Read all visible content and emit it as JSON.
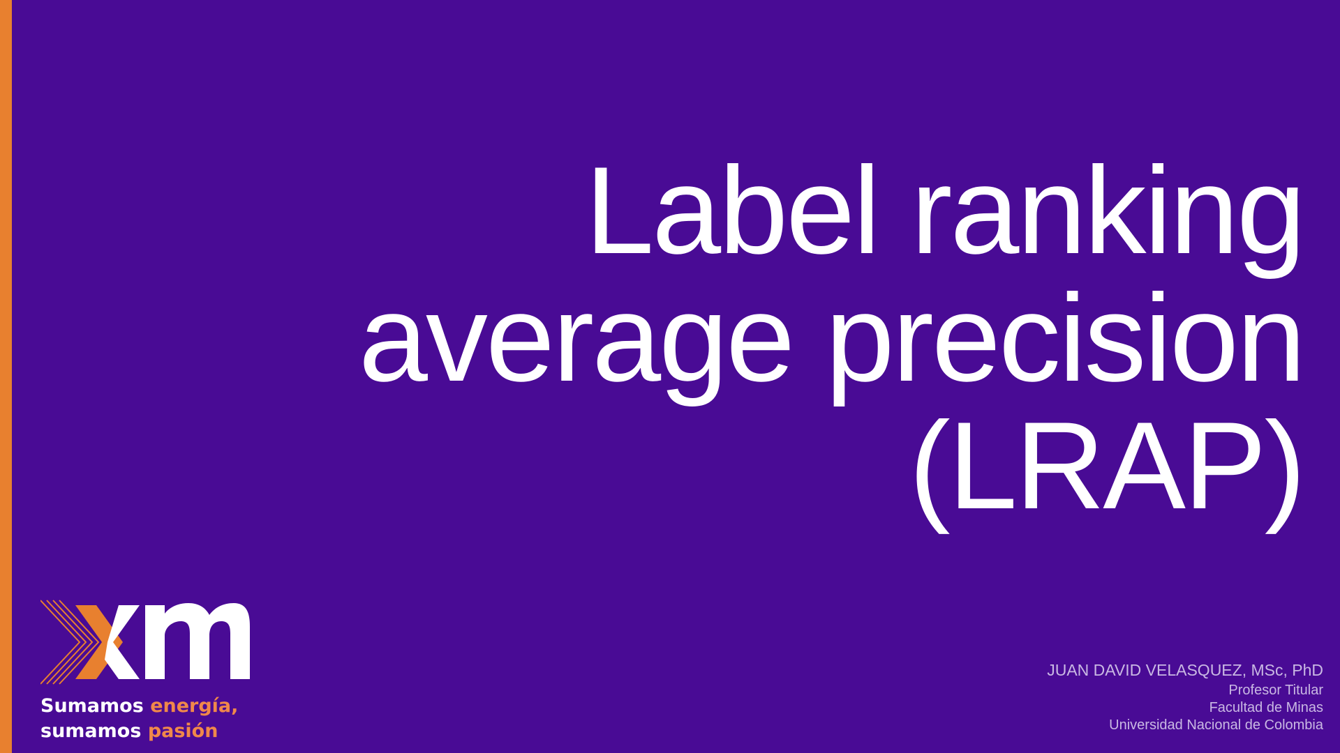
{
  "slide": {
    "title_lines": [
      "Label ranking",
      "average precision",
      "(LRAP)"
    ]
  },
  "logo": {
    "icon": "xm-logo",
    "wordmark": "xm",
    "tagline": {
      "line1_white": "Sumamos ",
      "line1_orange": "energía,",
      "line2_white": "sumamos ",
      "line2_orange": "pasión"
    }
  },
  "author": {
    "name": "JUAN DAVID VELASQUEZ, MSc, PhD",
    "position": "Profesor Titular",
    "faculty": "Facultad de Minas",
    "university": "Universidad Nacional de Colombia"
  },
  "colors": {
    "background": "#490b95",
    "accent": "#e8802f",
    "text": "#ffffff",
    "muted_text": "#c9b8e3"
  }
}
